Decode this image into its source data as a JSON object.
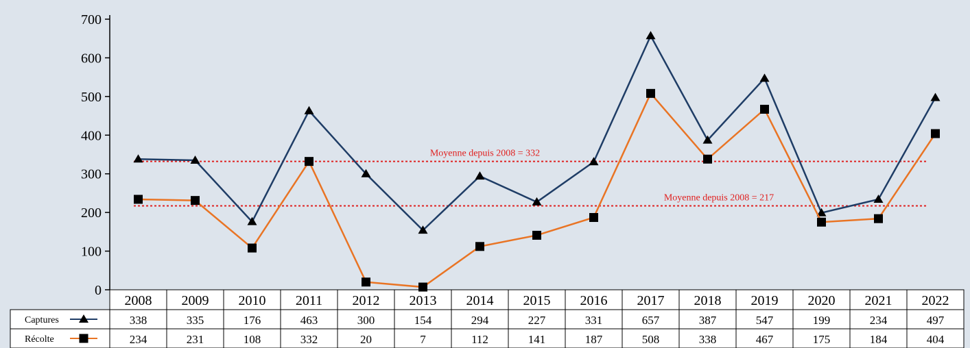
{
  "chart_data": {
    "type": "line",
    "categories": [
      "2008",
      "2009",
      "2010",
      "2011",
      "2012",
      "2013",
      "2014",
      "2015",
      "2016",
      "2017",
      "2018",
      "2019",
      "2020",
      "2021",
      "2022"
    ],
    "series": [
      {
        "name": "Captures",
        "color": "#1f3d66",
        "marker": "triangle",
        "values": [
          338,
          335,
          176,
          463,
          300,
          154,
          294,
          227,
          331,
          657,
          387,
          547,
          199,
          234,
          497
        ]
      },
      {
        "name": "Récolte",
        "color": "#e97424",
        "marker": "square",
        "values": [
          234,
          231,
          108,
          332,
          20,
          7,
          112,
          141,
          187,
          508,
          338,
          467,
          175,
          184,
          404
        ]
      }
    ],
    "ylim": [
      0,
      700
    ],
    "yticks": [
      0,
      100,
      200,
      300,
      400,
      500,
      600,
      700
    ],
    "reference_lines": [
      {
        "text": "Moyenne depuis 2008 = 332",
        "value": 332,
        "color": "#e0201f"
      },
      {
        "text": "Moyenne depuis 2008 = 217",
        "value": 217,
        "color": "#e0201f"
      }
    ]
  }
}
